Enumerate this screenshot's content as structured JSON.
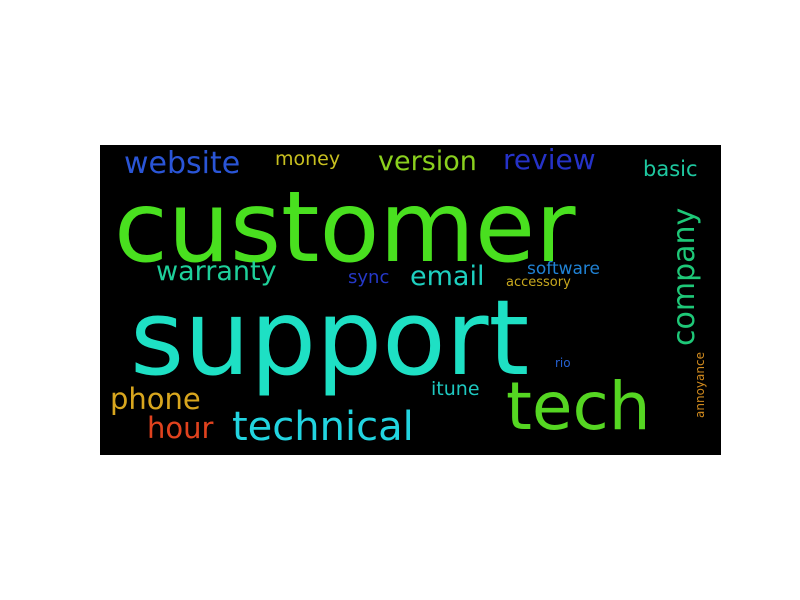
{
  "wordcloud": {
    "background": "#000000",
    "words": [
      {
        "text": "customer",
        "color": "#49e01f"
      },
      {
        "text": "support",
        "color": "#1ee0c4"
      },
      {
        "text": "tech",
        "color": "#55d622"
      },
      {
        "text": "technical",
        "color": "#22d4e0"
      },
      {
        "text": "website",
        "color": "#2a55d6"
      },
      {
        "text": "money",
        "color": "#c8c020"
      },
      {
        "text": "version",
        "color": "#8ad01e"
      },
      {
        "text": "review",
        "color": "#2532c8"
      },
      {
        "text": "basic",
        "color": "#1ec8a0"
      },
      {
        "text": "company",
        "color": "#1ec878"
      },
      {
        "text": "warranty",
        "color": "#1ed09a"
      },
      {
        "text": "email",
        "color": "#1ed0c0"
      },
      {
        "text": "software",
        "color": "#2082d4"
      },
      {
        "text": "sync",
        "color": "#2538c8"
      },
      {
        "text": "accessory",
        "color": "#c8a81e"
      },
      {
        "text": "phone",
        "color": "#d8a61e"
      },
      {
        "text": "hour",
        "color": "#e0421e"
      },
      {
        "text": "itune",
        "color": "#1ec8c0"
      },
      {
        "text": "rio",
        "color": "#2560d0"
      },
      {
        "text": "annoyance",
        "color": "#d08a1e"
      }
    ]
  }
}
